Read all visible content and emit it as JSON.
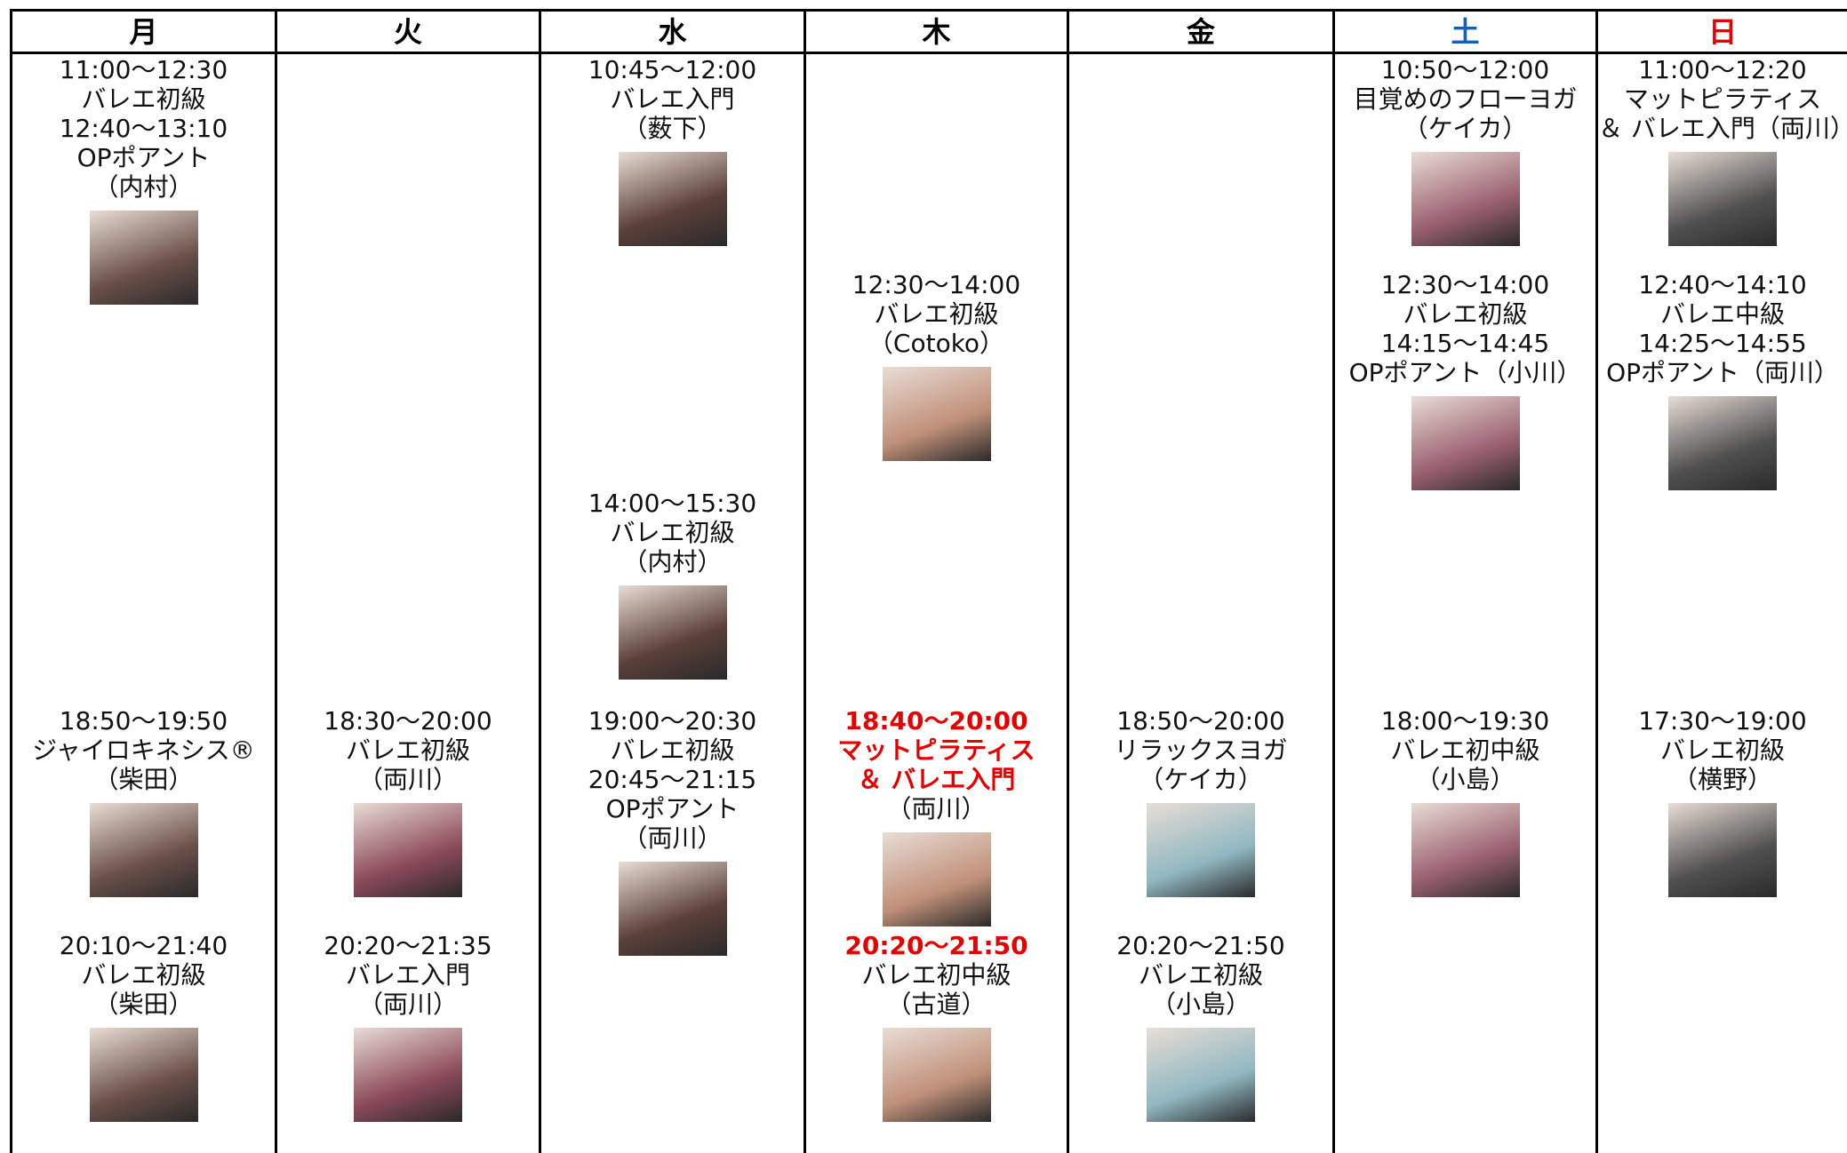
{
  "table": {
    "columns": [
      {
        "day": "月",
        "entries": [
          {
            "lines": [
              "11:00〜12:30",
              "バレエ初級",
              "12:40〜13:10",
              "OPポアント",
              "（内村）"
            ]
          },
          {
            "lines": [
              "18:50〜19:50",
              "ジャイロキネシス®",
              "（柴田）"
            ]
          },
          {
            "lines": [
              "20:10〜21:40",
              "バレエ初級",
              "（柴田）"
            ]
          }
        ]
      },
      {
        "day": "火",
        "entries": [
          {
            "lines": [
              "18:30〜20:00",
              "バレエ初級",
              "（両川）"
            ]
          },
          {
            "lines": [
              "20:20〜21:35",
              "バレエ入門",
              "（両川）"
            ]
          }
        ]
      },
      {
        "day": "水",
        "entries": [
          {
            "lines": [
              "10:45〜12:00",
              "バレエ入門",
              "（薮下）"
            ]
          },
          {
            "lines": [
              "14:00〜15:30",
              "バレエ初級",
              "（内村）"
            ]
          },
          {
            "lines": [
              "19:00〜20:30",
              "バレエ初級",
              "20:45〜21:15",
              "OPポアント",
              "（両川）"
            ]
          }
        ]
      },
      {
        "day": "木",
        "entries": [
          {
            "lines": [
              "12:30〜14:00",
              "バレエ初級",
              "（Cotoko）"
            ]
          },
          {
            "lines": [
              "18:40〜20:00",
              "マットピラティス",
              "＆ バレエ入門",
              "（両川）"
            ]
          },
          {
            "lines": [
              "20:20〜21:50",
              "バレエ初中級",
              "（古道）"
            ]
          }
        ]
      },
      {
        "day": "金",
        "entries": [
          {
            "lines": [
              "18:50〜20:00",
              "リラックスヨガ",
              "（ケイカ）"
            ]
          },
          {
            "lines": [
              "20:20〜21:50",
              "バレエ初級",
              "（小島）"
            ]
          }
        ]
      },
      {
        "day": "土",
        "entries": [
          {
            "lines": [
              "10:50〜12:00",
              "目覚めのフローヨガ",
              "（ケイカ）"
            ]
          },
          {
            "lines": [
              "12:30〜14:00",
              "バレエ初級",
              "14:15〜14:45",
              "OPポアント（小川）"
            ]
          },
          {
            "lines": [
              "18:00〜19:30",
              "バレエ初中級",
              "（小島）"
            ]
          }
        ]
      },
      {
        "day": "日",
        "entries": [
          {
            "lines": [
              "11:00〜12:20",
              "マットピラティス",
              "＆ バレエ入門（両川）"
            ]
          },
          {
            "lines": [
              "12:40〜14:10",
              "バレエ中級",
              "14:25〜14:55",
              "OPポアント（両川）"
            ]
          },
          {
            "lines": [
              "17:30〜19:00",
              "バレエ初級",
              "（横野）"
            ]
          }
        ]
      }
    ]
  }
}
